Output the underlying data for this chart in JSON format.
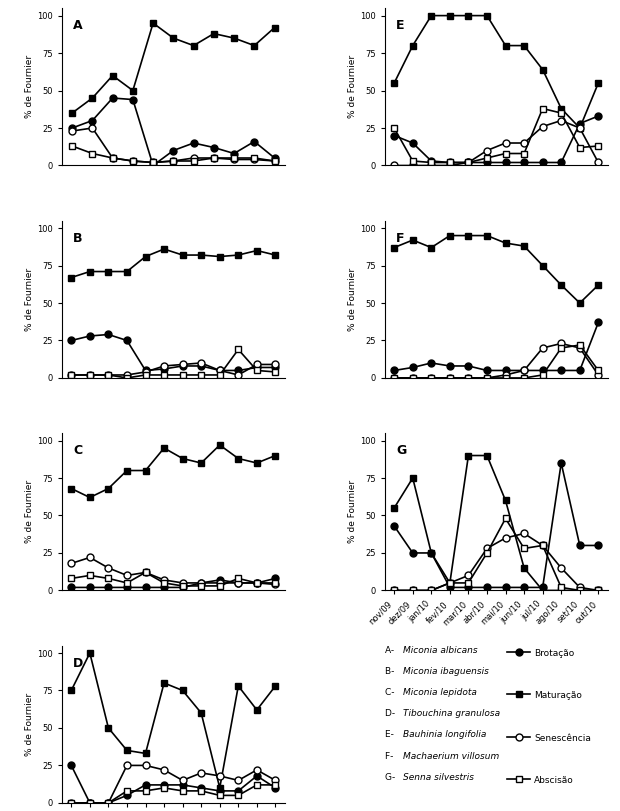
{
  "months": [
    "nov/09",
    "dez/09",
    "jan/10",
    "fev/10",
    "mar/10",
    "abr/10",
    "mai/10",
    "jun/10",
    "jul/10",
    "ago/10",
    "set/10",
    "out/10"
  ],
  "panels": {
    "A": {
      "maturacao": [
        35,
        45,
        60,
        50,
        95,
        85,
        80,
        88,
        85,
        80,
        92
      ],
      "brotacao": [
        25,
        30,
        45,
        44,
        0,
        10,
        15,
        12,
        8,
        16,
        5
      ],
      "senescencia": [
        23,
        25,
        5,
        3,
        2,
        3,
        5,
        5,
        4,
        4,
        3
      ],
      "abscisao": [
        13,
        8,
        5,
        3,
        2,
        3,
        3,
        5,
        5,
        5,
        3
      ]
    },
    "B": {
      "maturacao": [
        67,
        71,
        71,
        71,
        81,
        86,
        82,
        82,
        81,
        82,
        85,
        82
      ],
      "brotacao": [
        25,
        28,
        29,
        25,
        5,
        6,
        8,
        8,
        5,
        5,
        7,
        7
      ],
      "senescencia": [
        2,
        2,
        2,
        2,
        4,
        8,
        9,
        10,
        5,
        2,
        9,
        9
      ],
      "abscisao": [
        2,
        2,
        2,
        0,
        2,
        2,
        2,
        2,
        2,
        19,
        5,
        4
      ]
    },
    "C": {
      "maturacao": [
        68,
        62,
        68,
        80,
        80,
        95,
        88,
        85,
        97,
        88,
        85,
        90
      ],
      "brotacao": [
        2,
        2,
        2,
        2,
        2,
        2,
        2,
        5,
        7,
        5,
        5,
        8
      ],
      "senescencia": [
        18,
        22,
        15,
        10,
        12,
        7,
        5,
        5,
        5,
        5,
        5,
        4
      ],
      "abscisao": [
        8,
        10,
        8,
        5,
        12,
        5,
        3,
        3,
        3,
        8,
        5,
        5
      ]
    },
    "D": {
      "maturacao": [
        75,
        100,
        50,
        35,
        33,
        80,
        75,
        60,
        10,
        78,
        62,
        78
      ],
      "brotacao": [
        25,
        0,
        0,
        5,
        12,
        12,
        12,
        10,
        8,
        8,
        18,
        10
      ],
      "senescencia": [
        0,
        0,
        0,
        25,
        25,
        22,
        15,
        20,
        18,
        15,
        22,
        15
      ],
      "abscisao": [
        0,
        0,
        0,
        8,
        8,
        10,
        8,
        8,
        5,
        5,
        12,
        12
      ]
    },
    "E": {
      "maturacao": [
        55,
        80,
        100,
        100,
        100,
        100,
        80,
        80,
        64,
        38,
        25,
        55
      ],
      "brotacao": [
        20,
        15,
        3,
        2,
        2,
        2,
        2,
        2,
        2,
        2,
        28,
        33
      ],
      "senescencia": [
        0,
        0,
        0,
        0,
        2,
        10,
        15,
        15,
        26,
        30,
        25,
        2
      ],
      "abscisao": [
        25,
        3,
        2,
        2,
        2,
        5,
        8,
        8,
        38,
        35,
        12,
        13
      ]
    },
    "F": {
      "maturacao": [
        87,
        92,
        87,
        95,
        95,
        95,
        90,
        88,
        75,
        62,
        50,
        62
      ],
      "brotacao": [
        5,
        7,
        10,
        8,
        8,
        5,
        5,
        5,
        5,
        5,
        5,
        37
      ],
      "senescencia": [
        0,
        0,
        0,
        0,
        0,
        0,
        2,
        5,
        20,
        23,
        20,
        2
      ],
      "abscisao": [
        0,
        0,
        0,
        0,
        0,
        0,
        0,
        0,
        2,
        20,
        22,
        5
      ]
    },
    "G": {
      "maturacao": [
        55,
        75,
        25,
        5,
        90,
        90,
        60,
        15,
        0,
        0,
        0,
        0
      ],
      "brotacao": [
        43,
        25,
        25,
        2,
        2,
        2,
        2,
        2,
        2,
        85,
        30,
        30
      ],
      "senescencia": [
        0,
        0,
        0,
        5,
        10,
        28,
        35,
        38,
        30,
        15,
        2,
        0
      ],
      "abscisao": [
        0,
        0,
        0,
        5,
        5,
        25,
        48,
        28,
        30,
        2,
        0,
        0
      ]
    }
  },
  "legend_species": [
    "A- Miconia albicans",
    "B- Miconia ibaguensis",
    "C- Miconia lepidota",
    "D- Tibouchina granulosa",
    "E- Bauhinia longifolia",
    "F- Machaerium villosum",
    "G- Senna silvestris"
  ],
  "legend_pheno": [
    [
      "Brotação",
      "filled_circle"
    ],
    [
      "Maturação",
      "filled_square"
    ],
    [
      "Senescência",
      "open_circle"
    ],
    [
      "Abscisão",
      "open_square"
    ]
  ]
}
